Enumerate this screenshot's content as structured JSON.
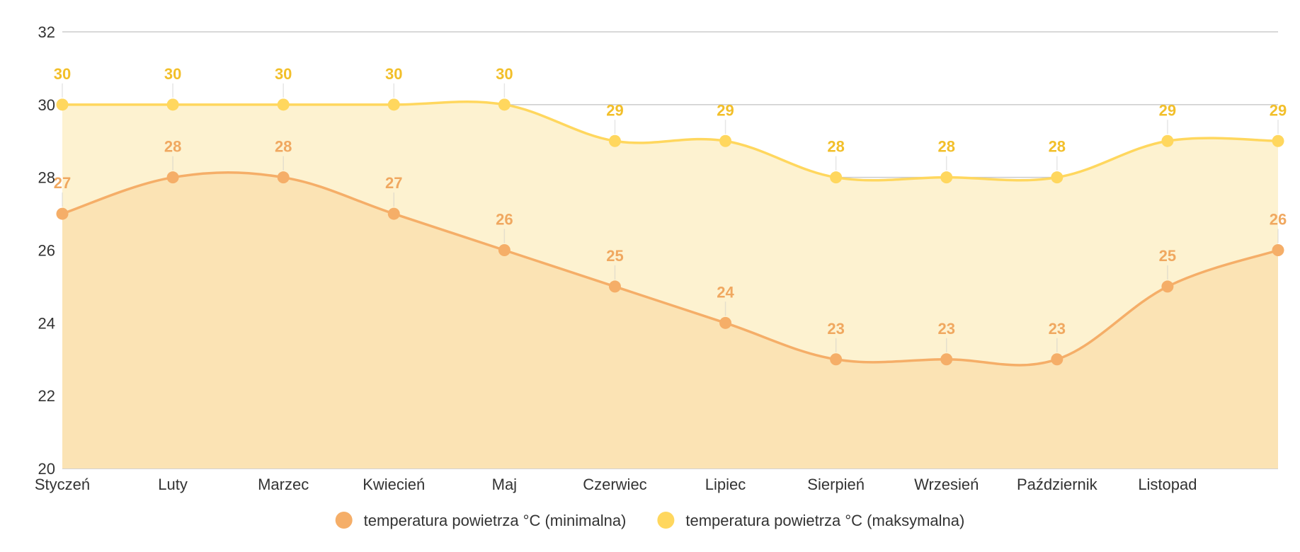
{
  "chart_data": {
    "type": "area",
    "categories": [
      "Styczeń",
      "Luty",
      "Marzec",
      "Kwiecień",
      "Maj",
      "Czerwiec",
      "Lipiec",
      "Sierpień",
      "Wrzesień",
      "Październik",
      "Listopad",
      ""
    ],
    "series": [
      {
        "name": "temperatura powietrza °C (minimalna)",
        "values": [
          27,
          28,
          28,
          27,
          26,
          25,
          24,
          23,
          23,
          23,
          25,
          26
        ],
        "color": "#F5AE68",
        "fill": "#FBE3B4",
        "label_color": "#F0A860"
      },
      {
        "name": "temperatura powietrza °C (maksymalna)",
        "values": [
          30,
          30,
          30,
          30,
          30,
          29,
          29,
          28,
          28,
          28,
          29,
          29
        ],
        "color": "#FFD75E",
        "fill": "#FDF2D0",
        "label_color": "#F2BF2A"
      }
    ],
    "ylim": [
      20,
      32
    ],
    "yticks": [
      "20",
      "22",
      "24",
      "26",
      "28",
      "30",
      "32"
    ],
    "grid": true,
    "legend_position": "bottom-center",
    "title": "",
    "xlabel": "",
    "ylabel": ""
  }
}
